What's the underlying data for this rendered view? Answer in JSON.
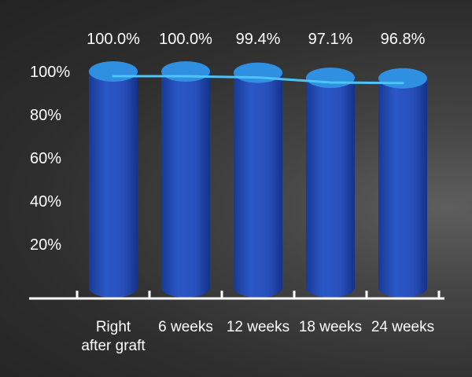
{
  "chart_data": {
    "type": "bar",
    "categories": [
      [
        "Right",
        "after graft"
      ],
      [
        "6 weeks"
      ],
      [
        "12 weeks"
      ],
      [
        "18 weeks"
      ],
      [
        "24 weeks"
      ]
    ],
    "series": [
      {
        "values": [
          100.0,
          100.0,
          99.4,
          97.1,
          96.8
        ]
      }
    ],
    "data_labels": [
      "100.0%",
      "100.0%",
      "99.4%",
      "97.1%",
      "96.8%"
    ],
    "trend_line": {
      "values": [
        100.0,
        100.0,
        99.4,
        97.1,
        96.8
      ]
    },
    "yticks": [
      "20%",
      "40%",
      "60%",
      "80%",
      "100%"
    ],
    "ylim": [
      0,
      100
    ],
    "grid": false,
    "legend": "none",
    "colors": {
      "bar_side_dark": "#1c3f9e",
      "bar_side_light": "#2f5fd0",
      "bar_top": "#2f8fe0",
      "trend_line": "#4fc3f7",
      "axis": "#ffffff"
    }
  }
}
